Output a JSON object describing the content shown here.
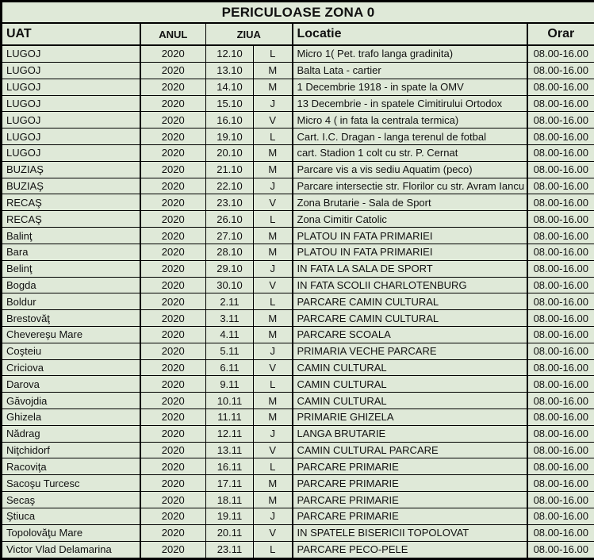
{
  "title": "PERICULOASE ZONA 0",
  "colors": {
    "background": "#dfe9d8",
    "border": "#000000",
    "text": "#111111"
  },
  "table": {
    "headers": {
      "uat": "UAT",
      "anul": "ANUL",
      "ziua": "ZIUA",
      "locatie": "Locatie",
      "orar": "Orar"
    },
    "rows": [
      {
        "uat": "LUGOJ",
        "anul": "2020",
        "data": "12.10",
        "zi": "L",
        "locatie": "Micro 1( Pet. trafo langa gradinita)",
        "orar": "08.00-16.00"
      },
      {
        "uat": "LUGOJ",
        "anul": "2020",
        "data": "13.10",
        "zi": "M",
        "locatie": "Balta Lata - cartier",
        "orar": "08.00-16.00"
      },
      {
        "uat": "LUGOJ",
        "anul": "2020",
        "data": "14.10",
        "zi": "M",
        "locatie": "1 Decembrie 1918 - in spate la OMV",
        "orar": "08.00-16.00"
      },
      {
        "uat": "LUGOJ",
        "anul": "2020",
        "data": "15.10",
        "zi": "J",
        "locatie": "13 Decembrie - in spatele Cimitirului Ortodox",
        "orar": "08.00-16.00"
      },
      {
        "uat": "LUGOJ",
        "anul": "2020",
        "data": "16.10",
        "zi": "V",
        "locatie": "Micro 4 ( in fata la centrala termica)",
        "orar": "08.00-16.00"
      },
      {
        "uat": "LUGOJ",
        "anul": "2020",
        "data": "19.10",
        "zi": "L",
        "locatie": "Cart. I.C. Dragan - langa terenul de fotbal",
        "orar": "08.00-16.00"
      },
      {
        "uat": "LUGOJ",
        "anul": "2020",
        "data": "20.10",
        "zi": "M",
        "locatie": "cart. Stadion 1 colt cu str. P. Cernat",
        "orar": "08.00-16.00"
      },
      {
        "uat": "BUZIAŞ",
        "anul": "2020",
        "data": "21.10",
        "zi": "M",
        "locatie": "Parcare vis a vis sediu Aquatim (peco)",
        "orar": "08.00-16.00"
      },
      {
        "uat": "BUZIAŞ",
        "anul": "2020",
        "data": "22.10",
        "zi": "J",
        "locatie": "Parcare intersectie str. Florilor cu str. Avram Iancu",
        "orar": "08.00-16.00"
      },
      {
        "uat": "RECAŞ",
        "anul": "2020",
        "data": "23.10",
        "zi": "V",
        "locatie": "Zona Brutarie - Sala de Sport",
        "orar": "08.00-16.00"
      },
      {
        "uat": "RECAŞ",
        "anul": "2020",
        "data": "26.10",
        "zi": "L",
        "locatie": "Zona Cimitir Catolic",
        "orar": "08.00-16.00"
      },
      {
        "uat": "Balinţ",
        "anul": "2020",
        "data": "27.10",
        "zi": "M",
        "locatie": "PLATOU IN FATA PRIMARIEI",
        "orar": "08.00-16.00"
      },
      {
        "uat": "Bara",
        "anul": "2020",
        "data": "28.10",
        "zi": "M",
        "locatie": "PLATOU IN FATA PRIMARIEI",
        "orar": "08.00-16.00"
      },
      {
        "uat": "Belinţ",
        "anul": "2020",
        "data": "29.10",
        "zi": "J",
        "locatie": "IN FATA LA SALA DE SPORT",
        "orar": "08.00-16.00"
      },
      {
        "uat": "Bogda",
        "anul": "2020",
        "data": "30.10",
        "zi": "V",
        "locatie": "IN FATA SCOLII CHARLOTENBURG",
        "orar": "08.00-16.00"
      },
      {
        "uat": "Boldur",
        "anul": "2020",
        "data": "2.11",
        "zi": "L",
        "locatie": "PARCARE CAMIN CULTURAL",
        "orar": "08.00-16.00"
      },
      {
        "uat": "Brestovăţ",
        "anul": "2020",
        "data": "3.11",
        "zi": "M",
        "locatie": "PARCARE CAMIN CULTURAL",
        "orar": "08.00-16.00"
      },
      {
        "uat": "Chevereşu Mare",
        "anul": "2020",
        "data": "4.11",
        "zi": "M",
        "locatie": "PARCARE SCOALA",
        "orar": "08.00-16.00"
      },
      {
        "uat": "Coşteiu",
        "anul": "2020",
        "data": "5.11",
        "zi": "J",
        "locatie": "PRIMARIA VECHE PARCARE",
        "orar": "08.00-16.00"
      },
      {
        "uat": "Criciova",
        "anul": "2020",
        "data": "6.11",
        "zi": "V",
        "locatie": "CAMIN CULTURAL",
        "orar": "08.00-16.00"
      },
      {
        "uat": "Darova",
        "anul": "2020",
        "data": "9.11",
        "zi": "L",
        "locatie": "CAMIN CULTURAL",
        "orar": "08.00-16.00"
      },
      {
        "uat": "Găvojdia",
        "anul": "2020",
        "data": "10.11",
        "zi": "M",
        "locatie": "CAMIN CULTURAL",
        "orar": "08.00-16.00"
      },
      {
        "uat": "Ghizela",
        "anul": "2020",
        "data": "11.11",
        "zi": "M",
        "locatie": "PRIMARIE GHIZELA",
        "orar": "08.00-16.00"
      },
      {
        "uat": "Nădrag",
        "anul": "2020",
        "data": "12.11",
        "zi": "J",
        "locatie": "LANGA BRUTARIE",
        "orar": "08.00-16.00"
      },
      {
        "uat": "Niţchidorf",
        "anul": "2020",
        "data": "13.11",
        "zi": "V",
        "locatie": "CAMIN  CULTURAL PARCARE",
        "orar": "08.00-16.00"
      },
      {
        "uat": "Racoviţa",
        "anul": "2020",
        "data": "16.11",
        "zi": "L",
        "locatie": "PARCARE PRIMARIE",
        "orar": "08.00-16.00"
      },
      {
        "uat": "Sacoşu Turcesc",
        "anul": "2020",
        "data": "17.11",
        "zi": "M",
        "locatie": "PARCARE PRIMARIE",
        "orar": "08.00-16.00"
      },
      {
        "uat": "Secaş",
        "anul": "2020",
        "data": "18.11",
        "zi": "M",
        "locatie": "PARCARE PRIMARIE",
        "orar": "08.00-16.00"
      },
      {
        "uat": "Ştiuca",
        "anul": "2020",
        "data": "19.11",
        "zi": "J",
        "locatie": "PARCARE PRIMARIE",
        "orar": "08.00-16.00"
      },
      {
        "uat": "Topolovăţu Mare",
        "anul": "2020",
        "data": "20.11",
        "zi": "V",
        "locatie": "IN SPATELE BISERICII TOPOLOVAT",
        "orar": "08.00-16.00"
      },
      {
        "uat": "Victor Vlad Delamarina",
        "anul": "2020",
        "data": "23.11",
        "zi": "L",
        "locatie": "PARCARE PECO-PELE",
        "orar": "08.00-16.00"
      }
    ]
  }
}
